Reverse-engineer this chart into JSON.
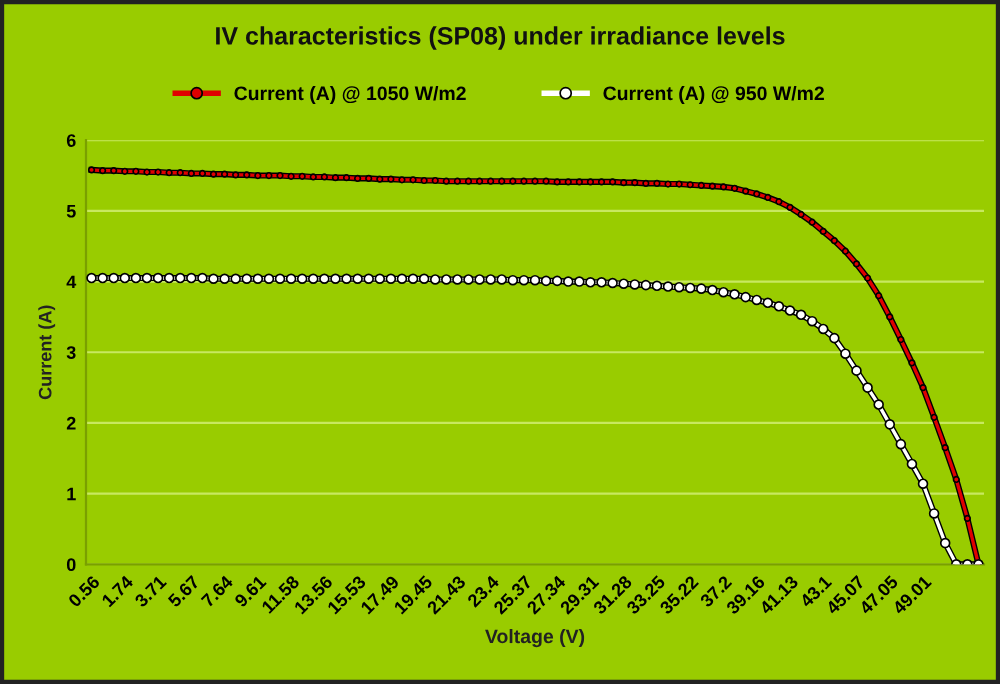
{
  "chart_data": {
    "type": "line",
    "title": "IV characteristics (SP08) under irradiance levels",
    "xlabel": "Voltage (V)",
    "ylabel": "Current (A)",
    "categories": [
      "0.56",
      null,
      null,
      "1.74",
      null,
      null,
      "3.71",
      null,
      null,
      "5.67",
      null,
      null,
      "7.64",
      null,
      null,
      "9.61",
      null,
      null,
      "11.58",
      null,
      null,
      "13.56",
      null,
      null,
      "15.53",
      null,
      null,
      "17.49",
      null,
      null,
      "19.45",
      null,
      null,
      "21.43",
      null,
      null,
      "23.4",
      null,
      null,
      "25.37",
      null,
      null,
      "27.34",
      null,
      null,
      "29.31",
      null,
      null,
      "31.28",
      null,
      null,
      "33.25",
      null,
      null,
      "35.22",
      null,
      null,
      "37.2",
      null,
      null,
      "39.16",
      null,
      null,
      "41.13",
      null,
      null,
      "43.1",
      null,
      null,
      "45.07",
      null,
      null,
      "47.05",
      null,
      null,
      "49.01",
      null,
      null,
      null,
      null,
      null
    ],
    "series": [
      {
        "name": "Current (A) @ 1050 W/m2",
        "color": "#e00000",
        "values": [
          5.58,
          5.57,
          5.57,
          5.56,
          5.56,
          5.55,
          5.55,
          5.54,
          5.54,
          5.53,
          5.53,
          5.52,
          5.52,
          5.51,
          5.51,
          5.5,
          5.5,
          5.5,
          5.49,
          5.49,
          5.48,
          5.48,
          5.47,
          5.47,
          5.46,
          5.46,
          5.45,
          5.45,
          5.44,
          5.44,
          5.43,
          5.43,
          5.42,
          5.42,
          5.42,
          5.42,
          5.42,
          5.42,
          5.42,
          5.42,
          5.42,
          5.42,
          5.41,
          5.41,
          5.41,
          5.41,
          5.41,
          5.41,
          5.4,
          5.4,
          5.39,
          5.39,
          5.38,
          5.38,
          5.37,
          5.36,
          5.35,
          5.34,
          5.32,
          5.28,
          5.24,
          5.19,
          5.13,
          5.05,
          4.95,
          4.84,
          4.71,
          4.58,
          4.43,
          4.25,
          4.05,
          3.8,
          3.5,
          3.18,
          2.85,
          2.5,
          2.08,
          1.65,
          1.2,
          0.65,
          0
        ]
      },
      {
        "name": "Current (A) @ 950 W/m2",
        "color": "#ffffff",
        "values": [
          4.05,
          4.05,
          4.05,
          4.05,
          4.05,
          4.05,
          4.05,
          4.05,
          4.05,
          4.05,
          4.05,
          4.04,
          4.04,
          4.04,
          4.04,
          4.04,
          4.04,
          4.04,
          4.04,
          4.04,
          4.04,
          4.04,
          4.04,
          4.04,
          4.04,
          4.04,
          4.04,
          4.04,
          4.04,
          4.04,
          4.04,
          4.03,
          4.03,
          4.03,
          4.03,
          4.03,
          4.03,
          4.03,
          4.02,
          4.02,
          4.02,
          4.01,
          4.01,
          4.0,
          4.0,
          3.99,
          3.99,
          3.98,
          3.97,
          3.96,
          3.95,
          3.94,
          3.93,
          3.92,
          3.91,
          3.9,
          3.88,
          3.85,
          3.82,
          3.78,
          3.74,
          3.7,
          3.65,
          3.59,
          3.53,
          3.44,
          3.33,
          3.2,
          2.98,
          2.74,
          2.5,
          2.26,
          1.98,
          1.7,
          1.42,
          1.14,
          0.72,
          0.3,
          0,
          0,
          0
        ]
      }
    ],
    "ylim": [
      0,
      6
    ],
    "yticks": [
      0,
      1,
      2,
      3,
      4,
      5,
      6
    ],
    "grid": "y",
    "legend": "top",
    "marker": "circle"
  }
}
